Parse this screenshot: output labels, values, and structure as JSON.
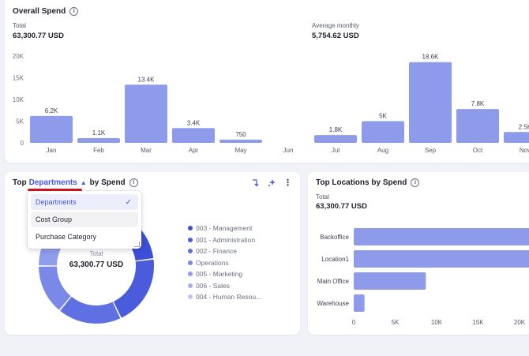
{
  "overall": {
    "title": "Overall Spend",
    "total_label": "Total",
    "total_value": "63,300.77 USD",
    "avg_label": "Average monthly",
    "avg_value": "5,754.62 USD"
  },
  "chart_data": [
    {
      "type": "bar",
      "title": "Overall Spend",
      "categories": [
        "Jan",
        "Feb",
        "Mar",
        "Apr",
        "May",
        "Jun",
        "Jul",
        "Aug",
        "Sep",
        "Oct",
        "Nov"
      ],
      "values": [
        6200,
        1100,
        13400,
        3400,
        750,
        0,
        1800,
        5000,
        18600,
        7800,
        2500
      ],
      "value_labels": [
        "6.2K",
        "1.1K",
        "13.4K",
        "3.4K",
        "750",
        "",
        "1.8K",
        "5K",
        "18.6K",
        "7.8K",
        "2.5K"
      ],
      "yticks": [
        "0",
        "5K",
        "10K",
        "15K",
        "20K"
      ],
      "ylim": [
        0,
        20000
      ],
      "grid": false,
      "color": "#8d9bea"
    },
    {
      "type": "pie",
      "title": "Top Departments by Spend",
      "labels": [
        "003 - Management",
        "001 - Administration",
        "002 - Finance",
        "Operations",
        "005 - Marketing",
        "006 - Sales",
        "004 - Human Resou..."
      ],
      "values": [
        23,
        20,
        18,
        14,
        11,
        8,
        6
      ],
      "colors": [
        "#3c4fd6",
        "#4a5cdc",
        "#5f70e2",
        "#7a89e8",
        "#8f9dec",
        "#a6b1f0",
        "#bcc4f4"
      ],
      "center_label": "Total",
      "center_value": "63,300.77 USD"
    },
    {
      "type": "bar",
      "orientation": "horizontal",
      "title": "Top Locations by Spend",
      "categories": [
        "Backoffice",
        "Location1",
        "Main Office",
        "Warehouse"
      ],
      "values": [
        26000,
        26000,
        8700,
        1300
      ],
      "xticks": [
        "0",
        "5K",
        "10K",
        "15K",
        "20K"
      ],
      "xlim": [
        0,
        25000
      ],
      "color": "#8d9bea"
    }
  ],
  "dept": {
    "title_prefix": "Top",
    "group_by": "Departments",
    "title_suffix": "by Spend",
    "dropdown": {
      "options": [
        "Departments",
        "Cost Group",
        "Purchase Category"
      ],
      "selected": "Departments"
    },
    "icons": [
      "sort-icon",
      "sparkle-icon",
      "more-vert-icon"
    ]
  },
  "loc": {
    "title": "Top Locations by Spend",
    "total_label": "Total",
    "total_value": "63,300.77 USD"
  }
}
